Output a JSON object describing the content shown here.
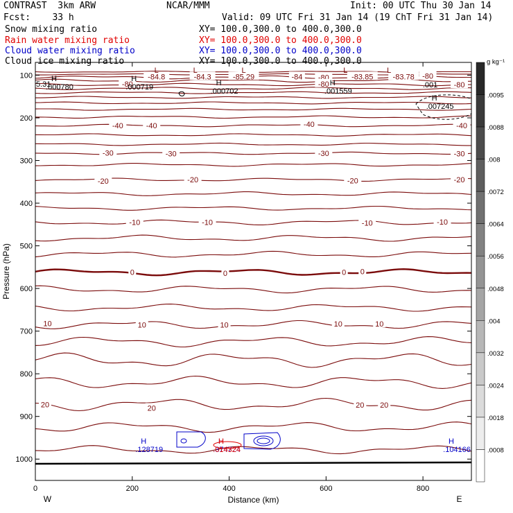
{
  "header": {
    "model": "CONTRAST  3km ARW",
    "center": "NCAR/MMM",
    "init": "Init: 00 UTC Thu 30 Jan 14",
    "fcst": "Fcst:    33 h",
    "valid": "Valid: 09 UTC Fri 31 Jan 14 (19 ChT Fri 31 Jan 14)"
  },
  "fields": [
    {
      "name": "Snow mixing ratio",
      "xy": "XY= 100.0,300.0 to 400.0,300.0",
      "color": "#000000"
    },
    {
      "name": "Rain water mixing ratio",
      "xy": "XY= 100.0,300.0 to 400.0,300.0",
      "color": "#e00000"
    },
    {
      "name": "Cloud water mixing ratio",
      "xy": "XY= 100.0,300.0 to 400.0,300.0",
      "color": "#0000c8"
    },
    {
      "name": "Cloud ice mixing ratio",
      "xy": "XY= 100.0,300.0 to 400.0,300.0",
      "color": "#000000"
    }
  ],
  "chart_data": {
    "type": "contour-cross-section",
    "xlabel": "Distance (km)",
    "ylabel": "Pressure (hPa)",
    "xlim": [
      0,
      900
    ],
    "ylim": [
      1050,
      70
    ],
    "x_ticks": [
      0,
      200,
      400,
      600,
      800
    ],
    "y_ticks": [
      100,
      200,
      300,
      400,
      500,
      600,
      700,
      800,
      900,
      1000
    ],
    "x_end_labels": {
      "left": "W",
      "right": "E"
    },
    "colorbar": {
      "unit": "g kg⁻¹",
      "ticks": [
        ".0095",
        ".0088",
        ".008",
        ".0072",
        ".0064",
        ".0056",
        ".0048",
        ".004",
        ".0032",
        ".0024",
        ".0018",
        ".0008"
      ]
    },
    "isotherm_labels": [
      {
        "text": "-80",
        "x": 190,
        "p": 120
      },
      {
        "text": "-80",
        "x": 595,
        "p": 105
      },
      {
        "text": "-80",
        "x": 595,
        "p": 120
      },
      {
        "text": "-80",
        "x": 810,
        "p": 102
      },
      {
        "text": "-80",
        "x": 875,
        "p": 122
      },
      {
        "text": "-40",
        "x": 170,
        "p": 218
      },
      {
        "text": "-40",
        "x": 240,
        "p": 218
      },
      {
        "text": "-40",
        "x": 565,
        "p": 215
      },
      {
        "text": "-40",
        "x": 880,
        "p": 218
      },
      {
        "text": "-30",
        "x": 150,
        "p": 282
      },
      {
        "text": "-30",
        "x": 280,
        "p": 284
      },
      {
        "text": "-30",
        "x": 595,
        "p": 283
      },
      {
        "text": "-30",
        "x": 875,
        "p": 284
      },
      {
        "text": "-20",
        "x": 140,
        "p": 348
      },
      {
        "text": "-20",
        "x": 325,
        "p": 345
      },
      {
        "text": "-20",
        "x": 655,
        "p": 347
      },
      {
        "text": "-20",
        "x": 875,
        "p": 345
      },
      {
        "text": "-10",
        "x": 205,
        "p": 445
      },
      {
        "text": "-10",
        "x": 355,
        "p": 445
      },
      {
        "text": "-10",
        "x": 685,
        "p": 446
      },
      {
        "text": "-10",
        "x": 840,
        "p": 444
      },
      {
        "text": "0",
        "x": 200,
        "p": 562
      },
      {
        "text": "0",
        "x": 392,
        "p": 564
      },
      {
        "text": "0",
        "x": 637,
        "p": 562
      },
      {
        "text": "0",
        "x": 675,
        "p": 560
      },
      {
        "text": "10",
        "x": 25,
        "p": 682
      },
      {
        "text": "10",
        "x": 220,
        "p": 685
      },
      {
        "text": "10",
        "x": 390,
        "p": 685
      },
      {
        "text": "10",
        "x": 625,
        "p": 683
      },
      {
        "text": "10",
        "x": 710,
        "p": 683
      },
      {
        "text": "20",
        "x": 20,
        "p": 872
      },
      {
        "text": "20",
        "x": 240,
        "p": 880
      },
      {
        "text": "20",
        "x": 670,
        "p": 873
      },
      {
        "text": "20",
        "x": 720,
        "p": 873
      }
    ],
    "tropopause_min_labels": [
      {
        "text": "-84.8",
        "x": 250,
        "p": 103
      },
      {
        "text": "-84.3",
        "x": 345,
        "p": 103
      },
      {
        "text": "-85.29",
        "x": 430,
        "p": 103
      },
      {
        "text": "-84",
        "x": 540,
        "p": 103
      },
      {
        "text": "-83.85",
        "x": 675,
        "p": 103
      },
      {
        "text": "-83.78",
        "x": 760,
        "p": 103
      }
    ],
    "low_markers": [
      {
        "text": "L",
        "x": 250,
        "p": 88
      },
      {
        "text": "L",
        "x": 330,
        "p": 88
      },
      {
        "text": "L",
        "x": 430,
        "p": 88
      },
      {
        "text": "L",
        "x": 640,
        "p": 88
      },
      {
        "text": "L",
        "x": 730,
        "p": 88
      }
    ],
    "maxima": [
      {
        "field": "snow",
        "value": ".000780",
        "x": 50,
        "p": 120
      },
      {
        "field": "snow",
        "value": ".000719",
        "x": 215,
        "p": 120
      },
      {
        "field": "snow",
        "value": ".000702",
        "x": 390,
        "p": 130
      },
      {
        "field": "snow",
        "value": ".001559",
        "x": 625,
        "p": 130
      },
      {
        "field": "cloud ice",
        "value": ".007245",
        "x": 835,
        "p": 166
      },
      {
        "field": "cloud water",
        "value": ".128719",
        "x": 235,
        "p": 970
      },
      {
        "field": "cloud water",
        "value": ".374724",
        "x": 395,
        "p": 970
      },
      {
        "field": "cloud water",
        "value": ".104166",
        "x": 870,
        "p": 970
      },
      {
        "field": "rain water",
        "value": ".014324",
        "x": 395,
        "p": 970
      }
    ],
    "left_edge_value": "5.31",
    "contour_label": ".001"
  }
}
